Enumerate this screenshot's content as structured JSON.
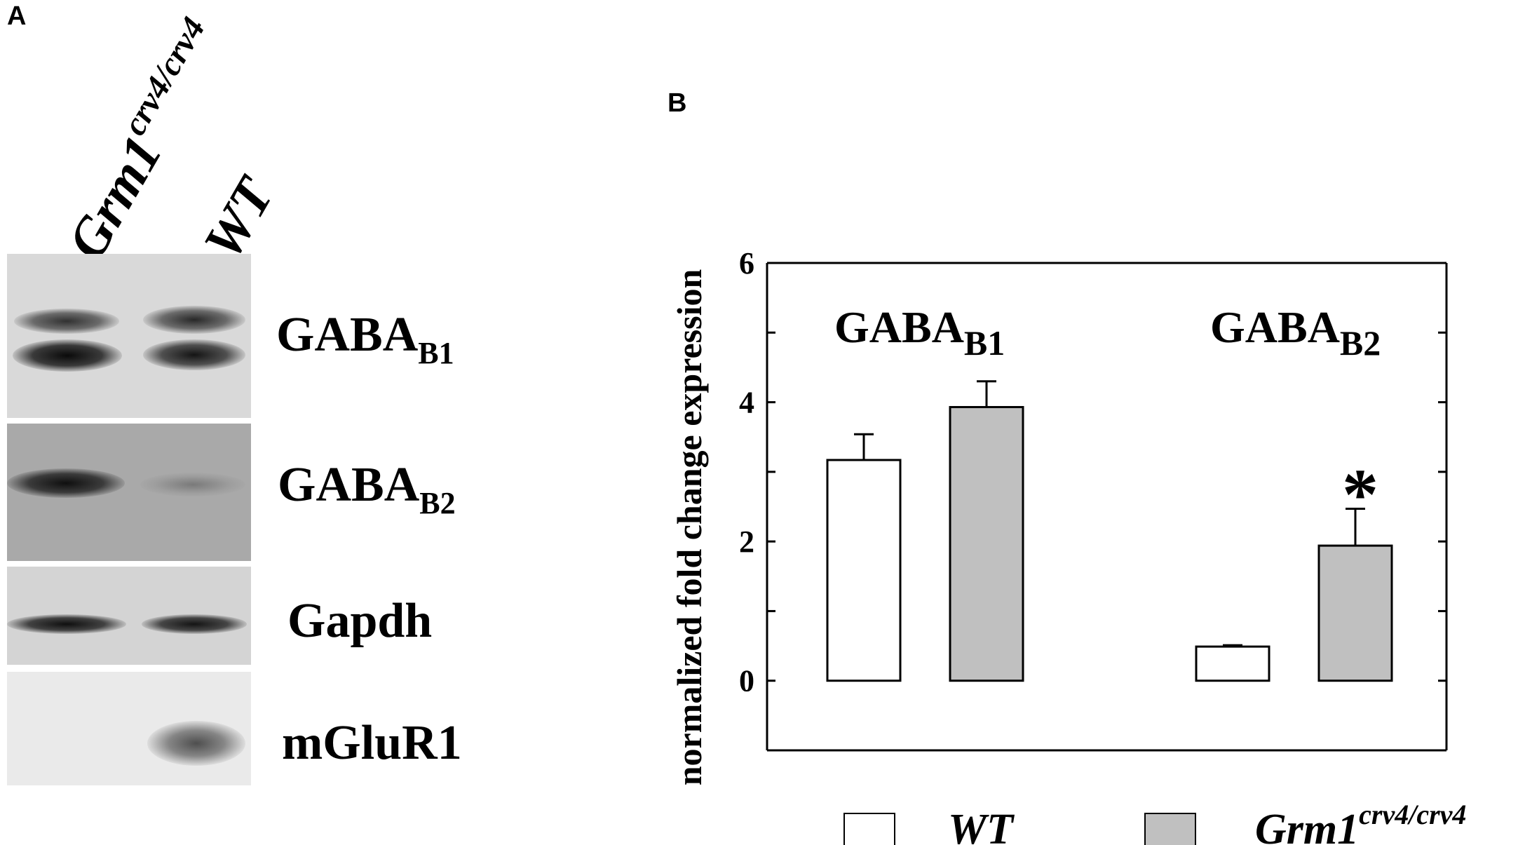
{
  "panel_a": {
    "label": "A",
    "lanes": [
      {
        "name_main": "Grm1",
        "name_sup": "crv4/crv4"
      },
      {
        "name_main": "WT",
        "name_sup": ""
      }
    ],
    "blots": [
      {
        "name_main": "GABA",
        "name_sub": "B1"
      },
      {
        "name_main": "GABA",
        "name_sub": "B2"
      },
      {
        "name_main": "Gapdh",
        "name_sub": ""
      },
      {
        "name_main": "mGluR1",
        "name_sub": ""
      }
    ]
  },
  "panel_b": {
    "label": "B"
  },
  "colors": {
    "wt_bar": "#ffffff",
    "mutant_bar": "#c0c0c0",
    "axis": "#000000"
  },
  "chart_data": {
    "type": "bar",
    "ylabel": "normalized fold change expression",
    "ylim": [
      -1,
      6
    ],
    "yticks": [
      0,
      2,
      4,
      6
    ],
    "groups": [
      {
        "label_main": "GABA",
        "label_sub": "B1"
      },
      {
        "label_main": "GABA",
        "label_sub": "B2"
      }
    ],
    "series": [
      {
        "name": "WT",
        "color": "#ffffff",
        "values": [
          3.17,
          0.49
        ],
        "errors": [
          0.37,
          0.02
        ]
      },
      {
        "name": "Grm1",
        "name_sup": "crv4/crv4",
        "color": "#c0c0c0",
        "values": [
          3.93,
          1.94
        ],
        "errors": [
          0.37,
          0.53
        ]
      }
    ],
    "annotations": [
      {
        "text": "*",
        "group": 1,
        "series": 1
      }
    ],
    "grid": false,
    "legend": "bottom"
  }
}
